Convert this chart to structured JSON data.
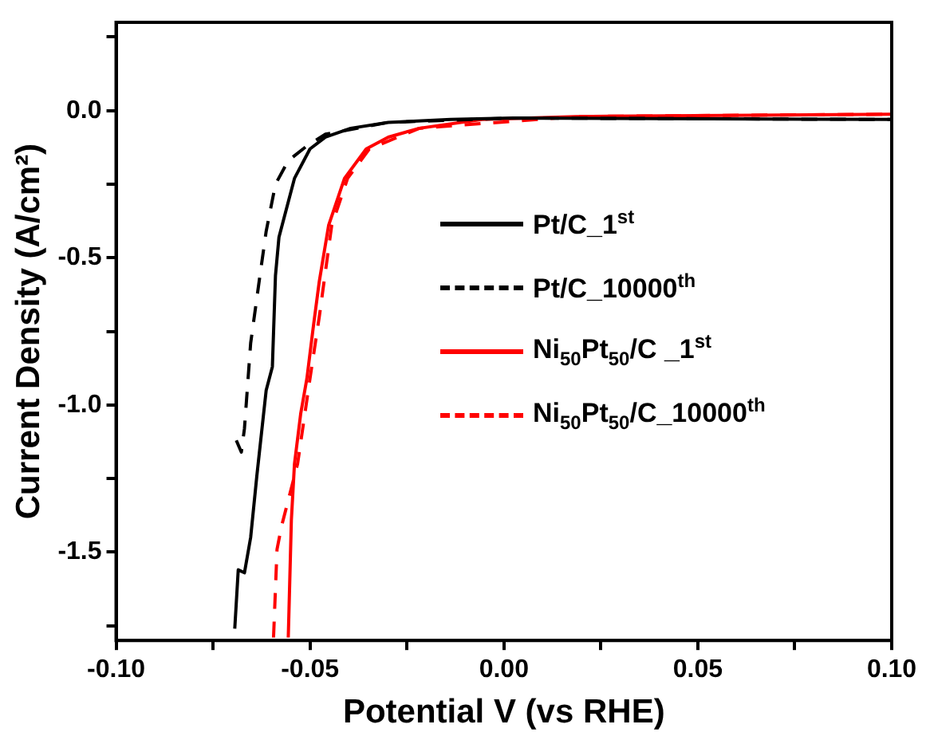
{
  "chart_data": {
    "type": "line",
    "xlabel": "Potential V (vs RHE)",
    "ylabel": "Current Density (A/cm²)",
    "xlim": [
      -0.1,
      0.1
    ],
    "ylim": [
      -1.8,
      0.3
    ],
    "xticks": [
      {
        "value": -0.1,
        "label": "-0.10"
      },
      {
        "value": -0.075,
        "label": null
      },
      {
        "value": -0.05,
        "label": "-0.05"
      },
      {
        "value": -0.025,
        "label": null
      },
      {
        "value": 0,
        "label": "0.00"
      },
      {
        "value": 0.025,
        "label": null
      },
      {
        "value": 0.05,
        "label": "0.05"
      },
      {
        "value": 0.075,
        "label": null
      },
      {
        "value": 0.1,
        "label": "0.10"
      }
    ],
    "yticks": [
      {
        "value": -1.75,
        "label": null
      },
      {
        "value": -1.5,
        "label": "-1.5"
      },
      {
        "value": -1.25,
        "label": null
      },
      {
        "value": -1,
        "label": "-1.0"
      },
      {
        "value": -0.75,
        "label": null
      },
      {
        "value": -0.5,
        "label": "-0.5"
      },
      {
        "value": -0.25,
        "label": null
      },
      {
        "value": 0,
        "label": "0.0"
      },
      {
        "value": 0.25,
        "label": null
      }
    ],
    "grid": false,
    "legend": "right",
    "marker": "none",
    "series": [
      {
        "name": "Pt/C_1$^{st}$",
        "color": "#000000",
        "line_style": "solid",
        "x": [
          -0.0694,
          -0.0685,
          -0.0669,
          -0.0653,
          -0.0637,
          -0.0613,
          -0.0597,
          -0.0589,
          -0.058,
          -0.054,
          -0.05,
          -0.046,
          -0.0395,
          -0.0298,
          -0.0137,
          0.0024,
          0.1
        ],
        "values": [
          -1.76,
          -1.56,
          -1.57,
          -1.45,
          -1.24,
          -0.95,
          -0.87,
          -0.56,
          -0.43,
          -0.23,
          -0.13,
          -0.09,
          -0.06,
          -0.04,
          -0.03,
          -0.025,
          -0.03
        ]
      },
      {
        "name": "Pt/C_10000$^{th}$",
        "color": "#000000",
        "line_style": "dashed",
        "x": [
          -0.069,
          -0.0677,
          -0.0669,
          -0.0653,
          -0.0629,
          -0.0613,
          -0.0589,
          -0.0556,
          -0.0508,
          -0.046,
          -0.0298,
          0.0024,
          0.1
        ],
        "values": [
          -1.12,
          -1.16,
          -1.08,
          -0.79,
          -0.56,
          -0.41,
          -0.25,
          -0.17,
          -0.12,
          -0.08,
          -0.04,
          -0.025,
          -0.03
        ]
      },
      {
        "name": "Ni$_{50}$Pt$_{50}$/C _1$^{st}$",
        "color": "#ff0000",
        "line_style": "solid",
        "x": [
          -0.0556,
          -0.0548,
          -0.054,
          -0.0524,
          -0.0508,
          -0.0492,
          -0.0476,
          -0.0452,
          -0.0411,
          -0.0355,
          -0.0298,
          -0.0218,
          -0.0056,
          0.0185,
          0.1
        ],
        "values": [
          -1.79,
          -1.39,
          -1.2,
          -1.03,
          -0.91,
          -0.74,
          -0.58,
          -0.39,
          -0.23,
          -0.13,
          -0.09,
          -0.06,
          -0.03,
          -0.02,
          -0.012
        ]
      },
      {
        "name": "Ni$_{50}$Pt$_{50}$/C_10000$^{th}$",
        "color": "#ff0000",
        "line_style": "dashed",
        "x": [
          -0.0594,
          -0.0585,
          -0.0573,
          -0.0532,
          -0.05,
          -0.0476,
          -0.0444,
          -0.0403,
          -0.0347,
          -0.0218,
          0.0185,
          0.1
        ],
        "values": [
          -1.79,
          -1.49,
          -1.41,
          -1.2,
          -0.91,
          -0.7,
          -0.39,
          -0.23,
          -0.13,
          -0.06,
          -0.02,
          -0.012
        ]
      }
    ]
  }
}
